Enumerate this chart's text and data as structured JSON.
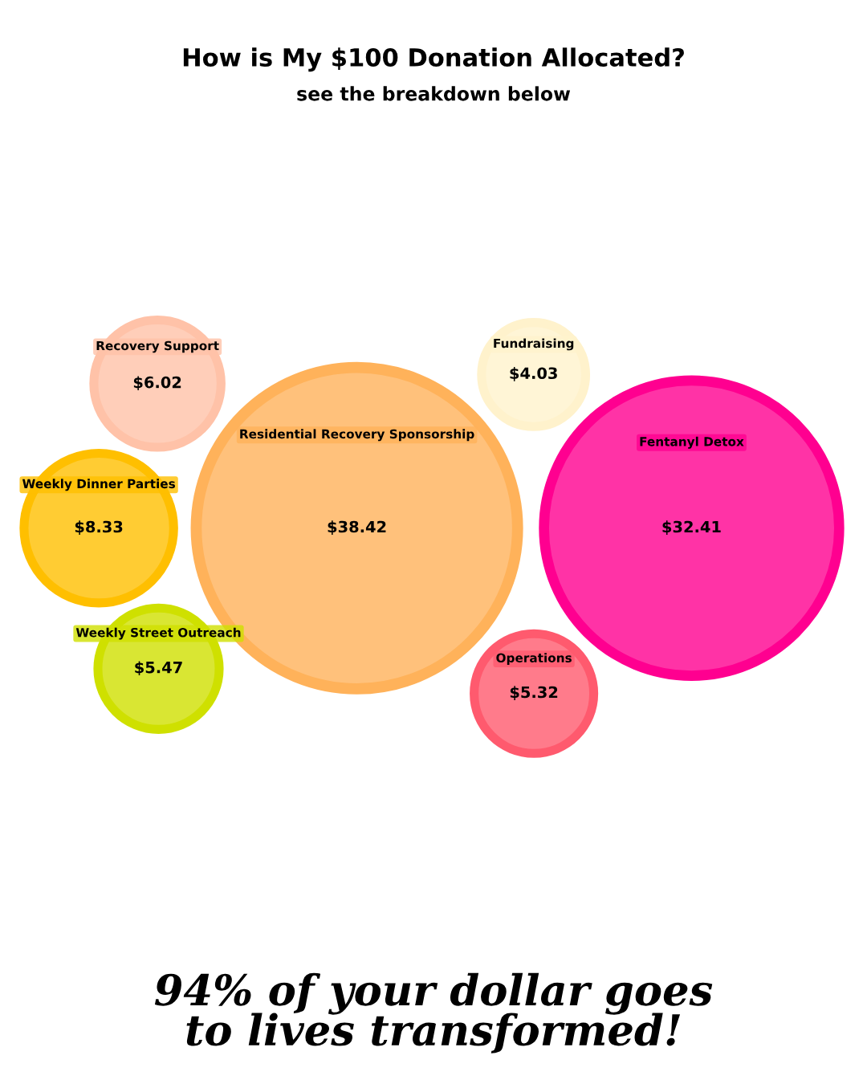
{
  "chart_data": {
    "type": "other",
    "title": "How is My $100 Donation Allocated?",
    "subtitle": "see the breakdown below",
    "categories": [
      "Weekly Street Outreach",
      "Fundraising",
      "Recovery Support",
      "Residential Recovery Sponsorship",
      "Fentanyl Detox",
      "Weekly Dinner Parties",
      "Operations"
    ],
    "values": [
      5.47,
      4.03,
      6.02,
      38.42,
      32.41,
      8.33,
      5.32
    ],
    "value_labels": [
      "$5.47",
      "$4.03",
      "$6.02",
      "$38.42",
      "$32.41",
      "$8.33",
      "$5.32"
    ],
    "colors": [
      "#cfe000",
      "#fff2cc",
      "#ffc2a8",
      "#ffb25a",
      "#ff0090",
      "#ffbf00",
      "#ff5a6e"
    ],
    "annotations": [
      "94% of your dollar goes\nto lives transformed!"
    ]
  }
}
